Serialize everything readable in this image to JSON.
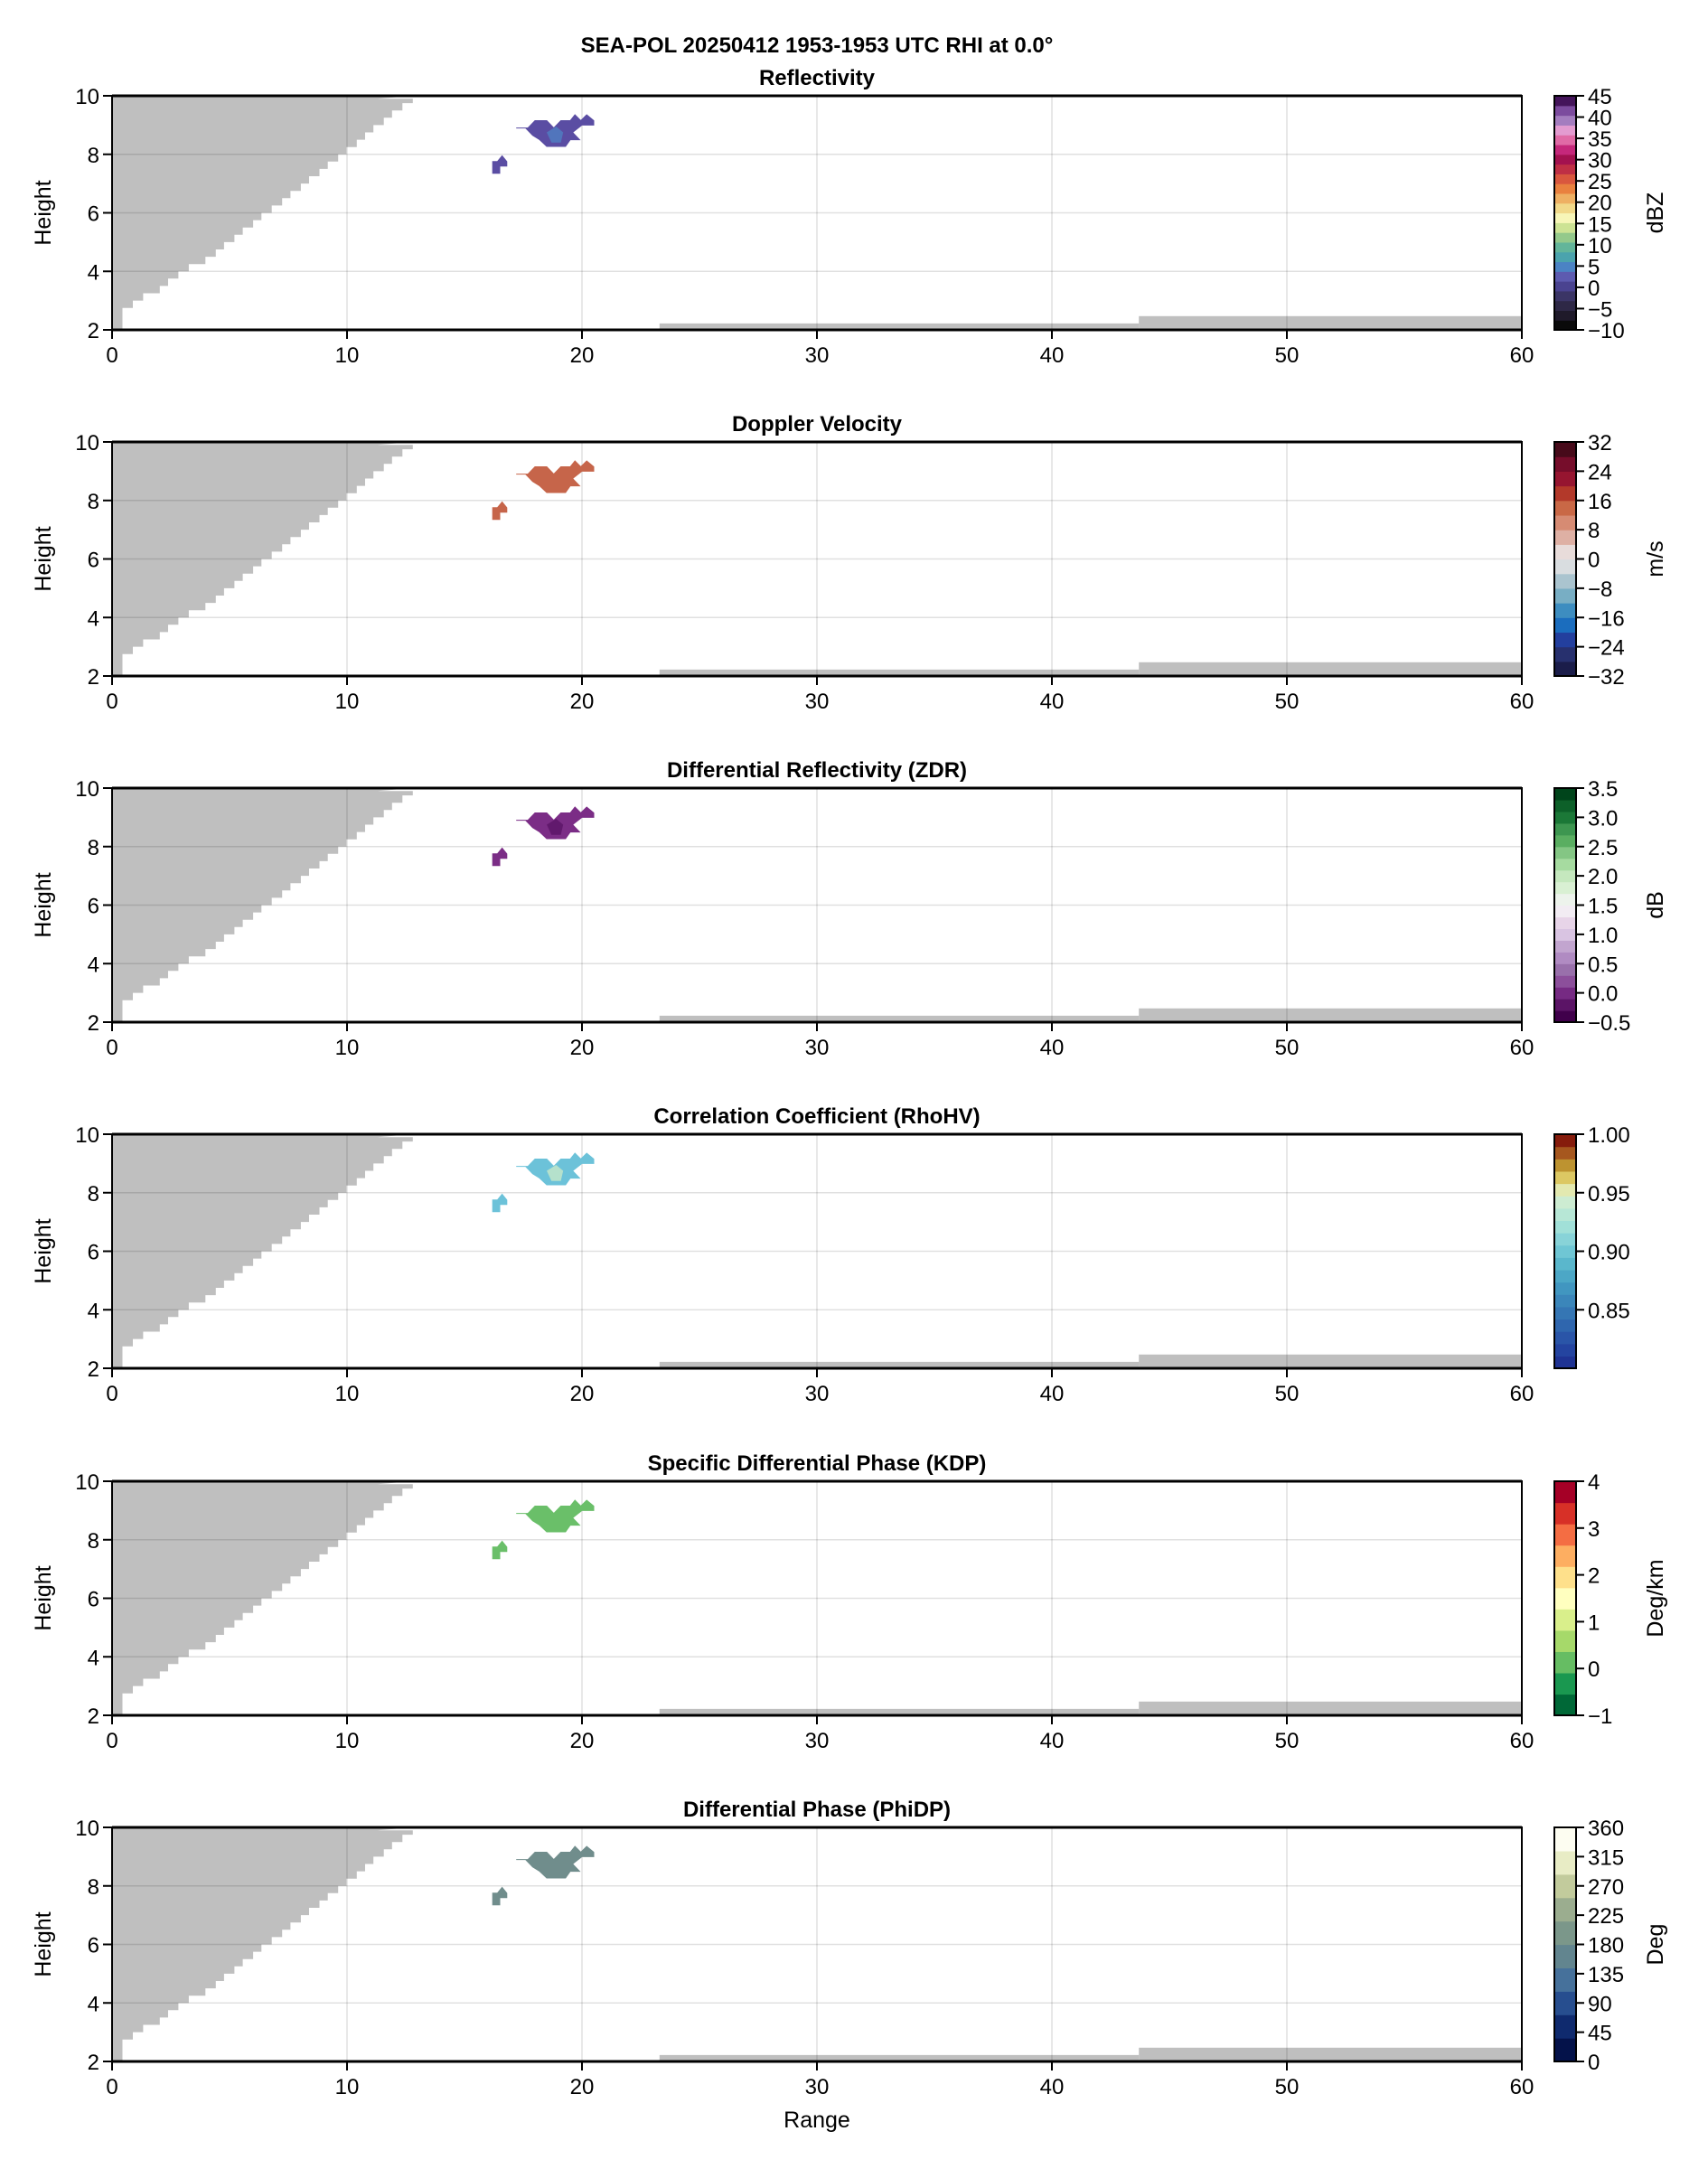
{
  "chart_data": {
    "type": "heatmap",
    "title": "SEA-POL 20250412 1953-1953 UTC RHI at 0.0°",
    "xlabel": "Range",
    "ylabel": "Height",
    "xlim": [
      0,
      60
    ],
    "ylim": [
      2,
      10
    ],
    "xticks": [
      0,
      10,
      20,
      30,
      40,
      50,
      60
    ],
    "yticks": [
      2,
      4,
      6,
      8,
      10
    ],
    "grid": true,
    "blocked_region_color": "#bfbfbf",
    "blocked_regions": {
      "upper_left_wedge": [
        [
          0,
          2.0
        ],
        [
          0.5,
          2.75
        ],
        [
          1.0,
          3.0
        ],
        [
          1.5,
          3.25
        ],
        [
          2.3,
          3.5
        ],
        [
          2.7,
          3.75
        ],
        [
          3.2,
          4.0
        ],
        [
          3.7,
          4.25
        ],
        [
          4.2,
          4.5
        ],
        [
          4.7,
          4.75
        ],
        [
          5.2,
          5.0
        ],
        [
          5.6,
          5.25
        ],
        [
          6.1,
          5.5
        ],
        [
          6.6,
          5.75
        ],
        [
          7.1,
          6.0
        ],
        [
          7.6,
          6.25
        ],
        [
          8.1,
          6.5
        ],
        [
          8.6,
          6.75
        ],
        [
          9.1,
          7.0
        ],
        [
          9.6,
          7.25
        ],
        [
          10.0,
          7.5
        ],
        [
          10.5,
          7.75
        ],
        [
          11.0,
          8.0
        ],
        [
          11.5,
          8.25
        ],
        [
          12.0,
          8.5
        ],
        [
          12.3,
          8.75
        ],
        [
          12.8,
          9.0
        ],
        [
          13.3,
          9.25
        ],
        [
          13.8,
          9.5
        ],
        [
          14.3,
          9.75
        ],
        [
          12.8,
          10.0
        ]
      ],
      "bottom_steps": [
        {
          "x0": 23.3,
          "x1": 43.7,
          "top": 2.22
        },
        {
          "x0": 43.7,
          "x1": 60.0,
          "top": 2.47
        }
      ]
    },
    "echo_cells": [
      {
        "name": "main-cell",
        "outline": [
          [
            17.2,
            8.9
          ],
          [
            17.7,
            8.9
          ],
          [
            18.0,
            9.15
          ],
          [
            18.5,
            9.15
          ],
          [
            18.8,
            8.9
          ],
          [
            19.1,
            9.15
          ],
          [
            19.5,
            9.15
          ],
          [
            19.7,
            9.35
          ],
          [
            19.95,
            9.15
          ],
          [
            20.2,
            9.35
          ],
          [
            20.5,
            9.15
          ],
          [
            20.5,
            9.0
          ],
          [
            20.0,
            9.0
          ],
          [
            19.6,
            8.75
          ],
          [
            19.9,
            8.5
          ],
          [
            19.5,
            8.5
          ],
          [
            19.3,
            8.27
          ],
          [
            18.5,
            8.27
          ],
          [
            18.2,
            8.5
          ],
          [
            17.9,
            8.65
          ],
          [
            17.6,
            8.9
          ]
        ]
      },
      {
        "name": "small-cell",
        "outline": [
          [
            16.2,
            7.35
          ],
          [
            16.5,
            7.35
          ],
          [
            16.5,
            7.6
          ],
          [
            16.8,
            7.6
          ],
          [
            16.8,
            7.75
          ],
          [
            16.6,
            7.95
          ],
          [
            16.4,
            7.75
          ],
          [
            16.2,
            7.75
          ]
        ]
      }
    ],
    "panels": [
      {
        "title": "Reflectivity",
        "field": "reflectivity",
        "units": "dBZ",
        "vmin": -10,
        "vmax": 45,
        "cbar_ticks": [
          "−10",
          "−5",
          "0",
          "5",
          "10",
          "15",
          "20",
          "25",
          "30",
          "35",
          "40",
          "45"
        ],
        "cbar_tick_values": [
          -10,
          -5,
          0,
          5,
          10,
          15,
          20,
          25,
          30,
          35,
          40,
          45
        ],
        "colormap": [
          "#0a0a0a",
          "#1f1a2a",
          "#2e2846",
          "#3b3566",
          "#4a4390",
          "#5d5bb0",
          "#4b83c4",
          "#4ba3ad",
          "#63b59a",
          "#94c98b",
          "#cde394",
          "#f7f6b8",
          "#f1d98a",
          "#eeb063",
          "#e9813f",
          "#d9573e",
          "#bf2f45",
          "#a3114f",
          "#c5287b",
          "#e06aa6",
          "#e39bd0",
          "#a47dbf",
          "#7c4b9e",
          "#44145a"
        ],
        "echo_fill": "#5a4da3",
        "echo_core": "#4f7fc2",
        "echo_value_range": [
          -2,
          5
        ]
      },
      {
        "title": "Doppler Velocity",
        "field": "velocity",
        "units": "m/s",
        "vmin": -32,
        "vmax": 32,
        "cbar_ticks": [
          "−32",
          "−24",
          "−16",
          "−8",
          "0",
          "8",
          "16",
          "24",
          "32"
        ],
        "cbar_tick_values": [
          -32,
          -24,
          -16,
          -8,
          0,
          8,
          16,
          24,
          32
        ],
        "colormap": [
          "#1b1d4a",
          "#27306e",
          "#233f9e",
          "#1b6dbe",
          "#3d8dc0",
          "#78aec4",
          "#aac4cf",
          "#d9dde0",
          "#e8dcda",
          "#deb0a4",
          "#d68b73",
          "#c96846",
          "#b3392a",
          "#961530",
          "#760d2b",
          "#470a1a"
        ],
        "echo_fill": "#c6654a",
        "echo_core": "#c6654a",
        "echo_value_range": [
          10,
          14
        ]
      },
      {
        "title": "Differential Reflectivity (ZDR)",
        "field": "zdr",
        "units": "dB",
        "vmin": -0.5,
        "vmax": 3.5,
        "cbar_ticks": [
          "−0.5",
          "0.0",
          "0.5",
          "1.0",
          "1.5",
          "2.0",
          "2.5",
          "3.0",
          "3.5"
        ],
        "cbar_tick_values": [
          -0.5,
          0.0,
          0.5,
          1.0,
          1.5,
          2.0,
          2.5,
          3.0,
          3.5
        ],
        "colormap": [
          "#40004b",
          "#5b1466",
          "#762a83",
          "#8c4f9b",
          "#9970ab",
          "#b08bc2",
          "#c2a5cf",
          "#d9c4e2",
          "#e7d4e8",
          "#f2ecf3",
          "#edf3ec",
          "#d9f0d3",
          "#c5e8be",
          "#a6dba0",
          "#84c684",
          "#5aae61",
          "#3d9650",
          "#1b7837",
          "#0d6029",
          "#00441b"
        ],
        "echo_fill": "#7b2d86",
        "echo_core": "#5b1466",
        "echo_value_range": [
          -0.3,
          0.5
        ]
      },
      {
        "title": "Correlation Coefficient (RhoHV)",
        "field": "rhohv",
        "units": "",
        "vmin": 0.8,
        "vmax": 1.0,
        "cbar_ticks": [
          "0.85",
          "0.90",
          "0.95",
          "1.00"
        ],
        "cbar_tick_values": [
          0.85,
          0.9,
          0.95,
          1.0
        ],
        "colormap": [
          "#1f3393",
          "#2444a0",
          "#2a55a8",
          "#2f66ae",
          "#3576b4",
          "#3b86ba",
          "#4196c0",
          "#4ca7c6",
          "#5ab7cc",
          "#6fc6d4",
          "#88d3d8",
          "#a1e0d8",
          "#b7e7d6",
          "#cdecd2",
          "#e3e9b0",
          "#dcc863",
          "#bd9330",
          "#a6571e",
          "#861c0c"
        ],
        "echo_fill": "#6cc2d9",
        "echo_core": "#c8e8c8",
        "echo_value_range": [
          0.86,
          0.96
        ]
      },
      {
        "title": "Specific Differential Phase (KDP)",
        "field": "kdp",
        "units": "Deg/km",
        "vmin": -1,
        "vmax": 4,
        "cbar_ticks": [
          "−1",
          "0",
          "1",
          "2",
          "3",
          "4"
        ],
        "cbar_tick_values": [
          -1,
          0,
          1,
          2,
          3,
          4
        ],
        "colormap": [
          "#006837",
          "#1a9850",
          "#66bd63",
          "#a6d96a",
          "#d9ef8b",
          "#ffffbf",
          "#fee08b",
          "#fdae61",
          "#f46d43",
          "#d73027",
          "#a50026"
        ],
        "echo_fill": "#6abf69",
        "echo_core": "#6abf69",
        "echo_value_range": [
          0,
          0.2
        ]
      },
      {
        "title": "Differential Phase (PhiDP)",
        "field": "phidp",
        "units": "Deg",
        "vmin": 0,
        "vmax": 360,
        "cbar_ticks": [
          "0",
          "45",
          "90",
          "135",
          "180",
          "225",
          "270",
          "315",
          "360"
        ],
        "cbar_tick_values": [
          0,
          45,
          90,
          135,
          180,
          225,
          270,
          315,
          360
        ],
        "colormap": [
          "#04124a",
          "#0f2a6e",
          "#274e8f",
          "#46719b",
          "#62858f",
          "#7b978a",
          "#9bad8f",
          "#c2cb9c",
          "#e8ecc5",
          "#fdfdf1"
        ],
        "echo_fill": "#708d8c",
        "echo_core": "#708d8c",
        "echo_value_range": [
          185,
          200
        ]
      }
    ]
  }
}
